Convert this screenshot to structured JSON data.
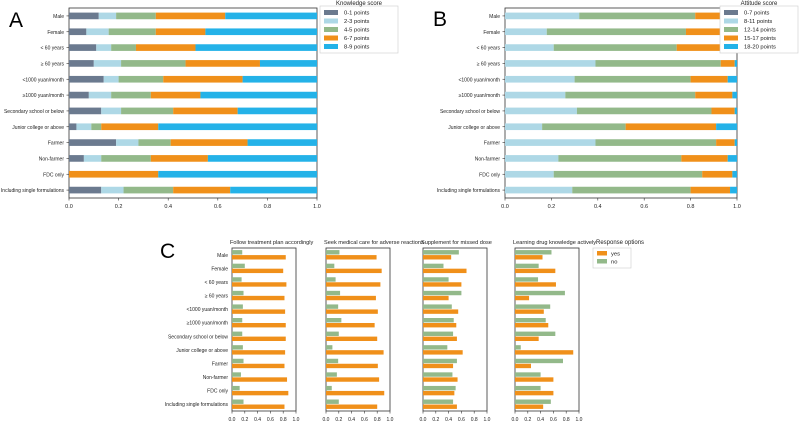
{
  "chart_data": [
    {
      "panel_label": "A",
      "type": "bar",
      "stacked": true,
      "orientation": "horizontal",
      "categories": [
        "Male",
        "Female",
        "< 60 years",
        "≥ 60 years",
        "<1000 yuan/month",
        "≥1000 yuan/month",
        "Secondary school or below",
        "Junior college or above",
        "Farmer",
        "Non-farmer",
        "FDC only",
        "Including single formulations"
      ],
      "legend_title": "Knowledge score",
      "legend_position": "right",
      "xlim": [
        0,
        1
      ],
      "xticks": [
        "0.0",
        "0.2",
        "0.4",
        "0.6",
        "0.8",
        "1.0"
      ],
      "series": [
        {
          "name": "0-1 points",
          "color": "#6b7a8f",
          "values": [
            0.12,
            0.07,
            0.11,
            0.1,
            0.14,
            0.08,
            0.13,
            0.03,
            0.19,
            0.06,
            0.0,
            0.13
          ]
        },
        {
          "name": "2-3 points",
          "color": "#aed8e6",
          "values": [
            0.07,
            0.09,
            0.06,
            0.11,
            0.06,
            0.09,
            0.08,
            0.06,
            0.09,
            0.07,
            0.0,
            0.09
          ]
        },
        {
          "name": "4-5 points",
          "color": "#93b98a",
          "values": [
            0.16,
            0.19,
            0.1,
            0.26,
            0.18,
            0.16,
            0.21,
            0.04,
            0.13,
            0.2,
            0.0,
            0.2
          ]
        },
        {
          "name": "6-7 points",
          "color": "#f0901a",
          "values": [
            0.28,
            0.2,
            0.24,
            0.3,
            0.32,
            0.2,
            0.26,
            0.23,
            0.31,
            0.23,
            0.36,
            0.23
          ]
        },
        {
          "name": "8-9 points",
          "color": "#24b2e8",
          "values": [
            0.37,
            0.45,
            0.49,
            0.23,
            0.3,
            0.47,
            0.32,
            0.64,
            0.28,
            0.44,
            0.64,
            0.35
          ]
        }
      ]
    },
    {
      "panel_label": "B",
      "type": "bar",
      "stacked": true,
      "orientation": "horizontal",
      "categories": [
        "Male",
        "Female",
        "< 60 years",
        "≥ 60 years",
        "<1000 yuan/month",
        "≥1000 yuan/month",
        "Secondary school or below",
        "Junior college or above",
        "Farmer",
        "Non-farmer",
        "FDC only",
        "Including single formulations"
      ],
      "legend_title": "Attitude score",
      "legend_position": "right",
      "xlim": [
        0,
        1
      ],
      "xticks": [
        "0.0",
        "0.2",
        "0.4",
        "0.6",
        "0.8",
        "1.0"
      ],
      "series": [
        {
          "name": "0-7 points",
          "color": "#6b7a8f",
          "values": [
            0.0,
            0.0,
            0.0,
            0.0,
            0.0,
            0.0,
            0.0,
            0.0,
            0.0,
            0.0,
            0.0,
            0.0
          ]
        },
        {
          "name": "8-11 points",
          "color": "#aed8e6",
          "values": [
            0.32,
            0.18,
            0.21,
            0.39,
            0.3,
            0.26,
            0.31,
            0.16,
            0.39,
            0.23,
            0.21,
            0.29
          ]
        },
        {
          "name": "12-14 points",
          "color": "#93b98a",
          "values": [
            0.5,
            0.6,
            0.53,
            0.54,
            0.5,
            0.56,
            0.58,
            0.36,
            0.52,
            0.53,
            0.64,
            0.51
          ]
        },
        {
          "name": "15-17 points",
          "color": "#f0901a",
          "values": [
            0.14,
            0.18,
            0.22,
            0.06,
            0.16,
            0.16,
            0.1,
            0.39,
            0.08,
            0.2,
            0.13,
            0.17
          ]
        },
        {
          "name": "18-20 points",
          "color": "#24b2e8",
          "values": [
            0.04,
            0.04,
            0.04,
            0.01,
            0.04,
            0.02,
            0.01,
            0.09,
            0.01,
            0.04,
            0.02,
            0.03
          ]
        }
      ]
    },
    {
      "panel_label": "C",
      "type": "bar",
      "orientation": "horizontal",
      "categories": [
        "Male",
        "Female",
        "< 60 years",
        "≥ 60 years",
        "<1000 yuan/month",
        "≥1000 yuan/month",
        "Secondary school or below",
        "Junior college or above",
        "Farmer",
        "Non-farmer",
        "FDC only",
        "Including single formulations"
      ],
      "legend_title": "Response options",
      "legend_position": "right",
      "legend_entries": [
        {
          "name": "yes",
          "color": "#f0901a"
        },
        {
          "name": "no",
          "color": "#93b98a"
        }
      ],
      "xlim": [
        0,
        1
      ],
      "xticks": [
        "0.0",
        "0.2",
        "0.4",
        "0.6",
        "0.8",
        "1.0"
      ],
      "subplots": [
        {
          "title": "Follow treatment plan accordingly",
          "yes": [
            0.84,
            0.8,
            0.85,
            0.82,
            0.83,
            0.84,
            0.84,
            0.83,
            0.82,
            0.86,
            0.88,
            0.82
          ],
          "no": [
            0.16,
            0.2,
            0.15,
            0.18,
            0.17,
            0.16,
            0.16,
            0.17,
            0.18,
            0.14,
            0.12,
            0.18
          ]
        },
        {
          "title": "Seek medical care for adverse reactions",
          "yes": [
            0.79,
            0.87,
            0.85,
            0.78,
            0.81,
            0.76,
            0.8,
            0.9,
            0.81,
            0.83,
            0.91,
            0.8
          ],
          "no": [
            0.21,
            0.13,
            0.15,
            0.22,
            0.19,
            0.24,
            0.2,
            0.1,
            0.19,
            0.17,
            0.09,
            0.2
          ]
        },
        {
          "title": "Supplement for missed dose",
          "yes": [
            0.44,
            0.68,
            0.6,
            0.4,
            0.55,
            0.52,
            0.53,
            0.62,
            0.47,
            0.54,
            0.49,
            0.53
          ],
          "no": [
            0.56,
            0.32,
            0.4,
            0.6,
            0.45,
            0.48,
            0.47,
            0.38,
            0.53,
            0.46,
            0.51,
            0.47
          ]
        },
        {
          "title": "Learning drug knowledge actively",
          "yes": [
            0.43,
            0.63,
            0.64,
            0.22,
            0.45,
            0.52,
            0.37,
            0.91,
            0.25,
            0.6,
            0.6,
            0.44
          ],
          "no": [
            0.57,
            0.37,
            0.36,
            0.78,
            0.55,
            0.48,
            0.63,
            0.09,
            0.75,
            0.4,
            0.4,
            0.56
          ]
        }
      ]
    }
  ]
}
